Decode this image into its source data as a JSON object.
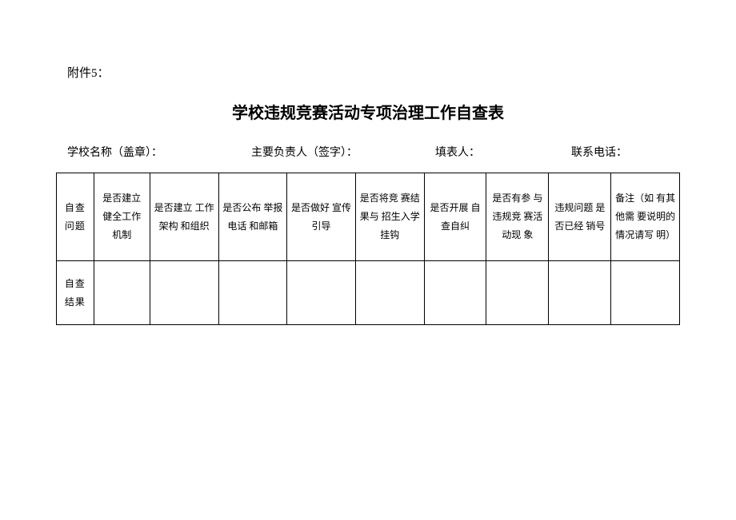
{
  "attachment_label": "附件5：",
  "title": "学校违规竞赛活动专项治理工作自查表",
  "meta": {
    "school_name_label": "学校名称（盖章）：",
    "principal_label": "主要负责人（签字）：",
    "filler_label": "填表人：",
    "phone_label": "联系电话："
  },
  "table": {
    "row_labels": {
      "question": "自查\n问题",
      "result": "自查\n结果"
    },
    "columns": [
      "是否建立 健全工作 机制",
      "是否建立 工作架构 和组织",
      "是否公布 举报电话 和邮箱",
      "是否做好 宣传引导",
      "是否将竞 赛结果与 招生入学 挂钩",
      "是否开展 自查自纠",
      "是否有参 与违规竞 赛活动现 象",
      "违规问题 是否已经 销号",
      "备注（如 有其他需 要说明的 情况请写 明）"
    ],
    "results": [
      "",
      "",
      "",
      "",
      "",
      "",
      "",
      "",
      ""
    ]
  },
  "style": {
    "background_color": "#ffffff",
    "border_color": "#000000",
    "text_color": "#000000",
    "title_fontsize": 20,
    "label_fontsize": 15,
    "meta_fontsize": 14,
    "cell_fontsize": 12
  }
}
